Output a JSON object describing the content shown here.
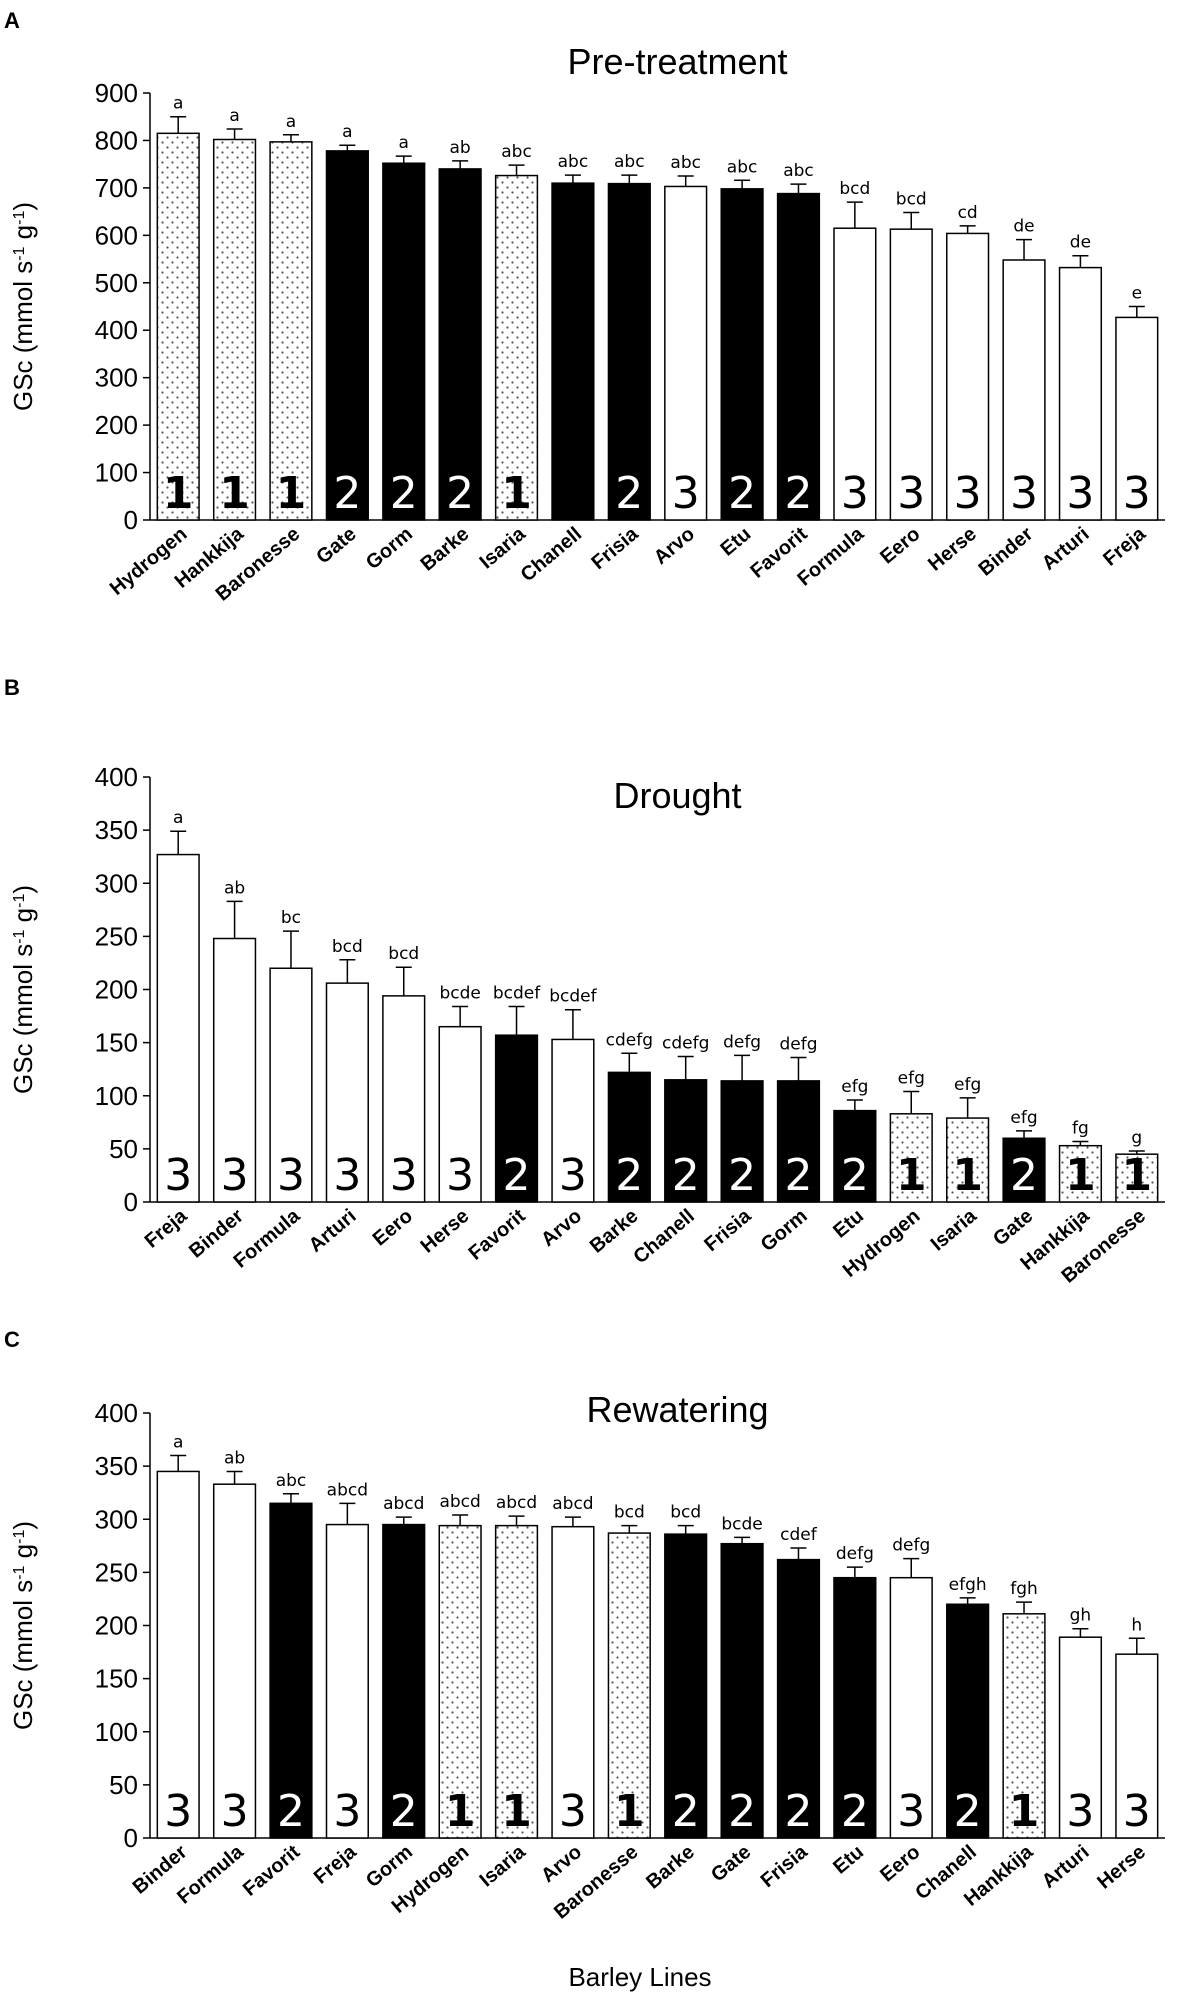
{
  "figure": {
    "ylabel_text": "GSc (mmol s",
    "ylabel_sup1": "-1",
    "ylabel_mid": " g",
    "ylabel_sup2": "-1",
    "ylabel_end": ")",
    "xlabel": "Barley Lines"
  },
  "colors": {
    "group1": "#ffffff",
    "group2": "#000000",
    "group3": "#ffffff",
    "stroke": "#000000",
    "dots": "#555555"
  },
  "chart_data": [
    {
      "type": "bar",
      "panel": "A",
      "title": "Pre-treatment",
      "ylabel": "GSc (mmol s-1 g-1)",
      "ylim": [
        0,
        900
      ],
      "yticks": [
        0,
        100,
        200,
        300,
        400,
        500,
        600,
        700,
        800,
        900
      ],
      "categories": [
        "Hydrogen",
        "Hankkija",
        "Baronesse",
        "Gate",
        "Gorm",
        "Barke",
        "Isaria",
        "Chanell",
        "Frisia",
        "Arvo",
        "Etu",
        "Favorit",
        "Formula",
        "Eero",
        "Herse",
        "Binder",
        "Arturi",
        "Freja"
      ],
      "values": [
        815,
        802,
        797,
        778,
        752,
        740,
        726,
        710,
        709,
        703,
        698,
        688,
        615,
        613,
        604,
        548,
        532,
        427
      ],
      "errors": [
        35,
        22,
        15,
        12,
        15,
        17,
        22,
        17,
        18,
        22,
        18,
        20,
        55,
        35,
        16,
        43,
        25,
        23
      ],
      "letters": [
        "a",
        "a",
        "a",
        "a",
        "a",
        "ab",
        "abc",
        "abc",
        "abc",
        "abc",
        "abc",
        "abc",
        "bcd",
        "bcd",
        "cd",
        "de",
        "de",
        "e"
      ],
      "groups": [
        "1",
        "1",
        "1",
        "2",
        "2",
        "2",
        "1",
        "",
        "2",
        "3",
        "2",
        "2",
        "3",
        "3",
        "3",
        "3",
        "3",
        "3"
      ],
      "fills": [
        1,
        1,
        1,
        2,
        2,
        2,
        1,
        2,
        2,
        3,
        2,
        2,
        3,
        3,
        3,
        3,
        3,
        3
      ]
    },
    {
      "type": "bar",
      "panel": "B",
      "title": "Drought",
      "ylabel": "GSc (mmol s-1 g-1)",
      "ylim": [
        0,
        400
      ],
      "yticks": [
        0,
        50,
        100,
        150,
        200,
        250,
        300,
        350,
        400
      ],
      "categories": [
        "Freja",
        "Binder",
        "Formula",
        "Arturi",
        "Eero",
        "Herse",
        "Favorit",
        "Arvo",
        "Barke",
        "Chanell",
        "Frisia",
        "Gorm",
        "Etu",
        "Hydrogen",
        "Isaria",
        "Gate",
        "Hankkija",
        "Baronesse"
      ],
      "values": [
        327,
        248,
        220,
        206,
        194,
        165,
        157,
        153,
        122,
        115,
        114,
        114,
        86,
        83,
        79,
        60,
        53,
        45
      ],
      "errors": [
        22,
        35,
        35,
        22,
        27,
        19,
        27,
        28,
        18,
        22,
        24,
        22,
        10,
        21,
        19,
        7,
        4,
        3
      ],
      "letters": [
        "a",
        "ab",
        "bc",
        "bcd",
        "bcd",
        "bcde",
        "bcdef",
        "bcdef",
        "cdefg",
        "cdefg",
        "defg",
        "defg",
        "efg",
        "efg",
        "efg",
        "efg",
        "fg",
        "g"
      ],
      "groups": [
        "3",
        "3",
        "3",
        "3",
        "3",
        "3",
        "2",
        "3",
        "2",
        "2",
        "2",
        "2",
        "2",
        "1",
        "1",
        "2",
        "1",
        "1"
      ],
      "fills": [
        3,
        3,
        3,
        3,
        3,
        3,
        2,
        3,
        2,
        2,
        2,
        2,
        2,
        1,
        1,
        2,
        1,
        1
      ]
    },
    {
      "type": "bar",
      "panel": "C",
      "title": "Rewatering",
      "ylabel": "GSc (mmol s-1 g-1)",
      "ylim": [
        0,
        400
      ],
      "yticks": [
        0,
        50,
        100,
        150,
        200,
        250,
        300,
        350,
        400
      ],
      "categories": [
        "Binder",
        "Formula",
        "Favorit",
        "Freja",
        "Gorm",
        "Hydrogen",
        "Isaria",
        "Arvo",
        "Baronesse",
        "Barke",
        "Gate",
        "Frisia",
        "Etu",
        "Eero",
        "Chanell",
        "Hankkija",
        "Arturi",
        "Herse"
      ],
      "values": [
        345,
        333,
        315,
        295,
        295,
        294,
        294,
        293,
        287,
        286,
        277,
        262,
        245,
        245,
        220,
        211,
        189,
        173
      ],
      "errors": [
        15,
        12,
        9,
        20,
        7,
        10,
        9,
        9,
        7,
        8,
        6,
        11,
        10,
        18,
        6,
        11,
        8,
        15
      ],
      "letters": [
        "a",
        "ab",
        "abc",
        "abcd",
        "abcd",
        "abcd",
        "abcd",
        "abcd",
        "bcd",
        "bcd",
        "bcde",
        "cdef",
        "defg",
        "defg",
        "efgh",
        "fgh",
        "gh",
        "h"
      ],
      "groups": [
        "3",
        "3",
        "2",
        "3",
        "2",
        "1",
        "1",
        "3",
        "1",
        "2",
        "2",
        "2",
        "2",
        "3",
        "2",
        "1",
        "3",
        "3"
      ],
      "fills": [
        3,
        3,
        2,
        3,
        2,
        1,
        1,
        3,
        1,
        2,
        2,
        2,
        2,
        3,
        2,
        1,
        3,
        3
      ]
    }
  ]
}
